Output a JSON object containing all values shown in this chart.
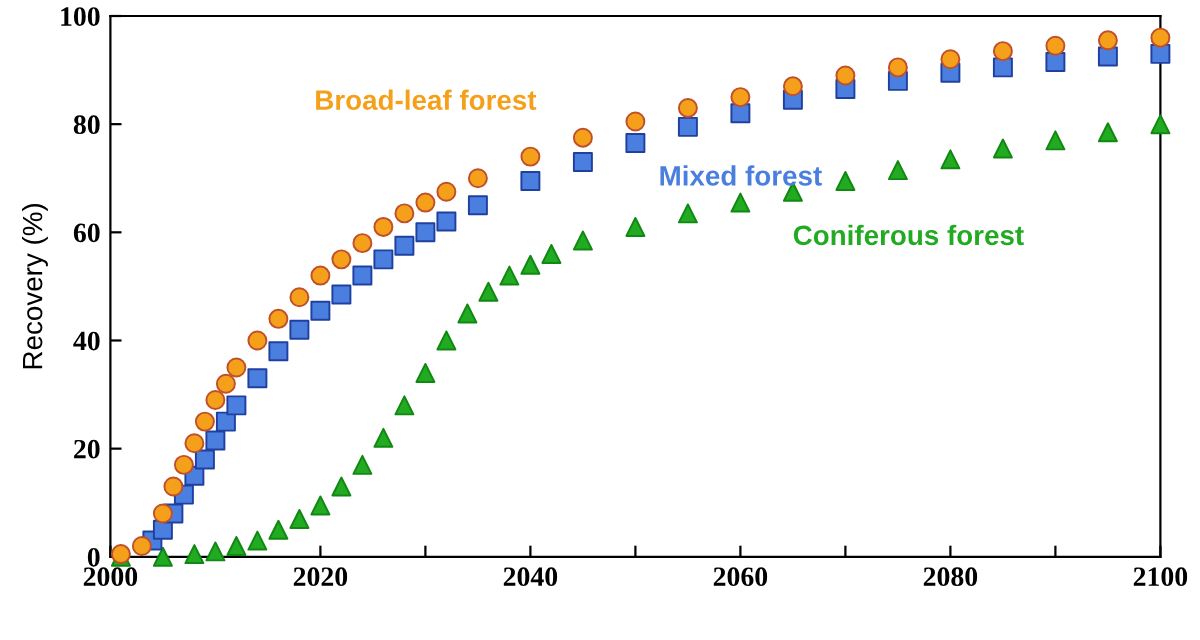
{
  "chart_data": {
    "type": "scatter",
    "ylabel": "Recovery (%)",
    "xlim": [
      2000,
      2100
    ],
    "ylim": [
      0,
      100
    ],
    "xticks": [
      2000,
      {
        "value": 2010,
        "label": null
      },
      2020,
      {
        "value": 2030,
        "label": null
      },
      2040,
      {
        "value": 2050,
        "label": null
      },
      2060,
      {
        "value": 2070,
        "label": null
      },
      2080,
      {
        "value": 2090,
        "label": null
      },
      2100
    ],
    "yticks": [
      0,
      20,
      40,
      60,
      80,
      100
    ],
    "grid": false,
    "legend": false,
    "series": [
      {
        "name": "Broad-leaf forest",
        "color": "#f5a01a",
        "marker": "circle",
        "x": [
          2001,
          2003,
          2005,
          2006,
          2007,
          2008,
          2009,
          2010,
          2011,
          2012,
          2014,
          2016,
          2018,
          2020,
          2022,
          2024,
          2026,
          2028,
          2030,
          2032,
          2035,
          2040,
          2045,
          2050,
          2055,
          2060,
          2065,
          2070,
          2075,
          2080,
          2085,
          2090,
          2095,
          2100
        ],
        "values": [
          0.5,
          2,
          8,
          13,
          17,
          21,
          25,
          29,
          32,
          35,
          40,
          44,
          48,
          52,
          55,
          58,
          61,
          63.5,
          65.5,
          67.5,
          70,
          74,
          77.5,
          80.5,
          83,
          85,
          87,
          89,
          90.5,
          92,
          93.5,
          94.5,
          95.5,
          96
        ]
      },
      {
        "name": "Mixed forest",
        "color": "#4a7fe0",
        "marker": "square",
        "x": [
          2004,
          2005,
          2006,
          2007,
          2008,
          2009,
          2010,
          2011,
          2012,
          2014,
          2016,
          2018,
          2020,
          2022,
          2024,
          2026,
          2028,
          2030,
          2032,
          2035,
          2040,
          2045,
          2050,
          2055,
          2060,
          2065,
          2070,
          2075,
          2080,
          2085,
          2090,
          2095,
          2100
        ],
        "values": [
          3,
          5,
          8,
          11.5,
          15,
          18,
          21.5,
          25,
          28,
          33,
          38,
          42,
          45.5,
          48.5,
          52,
          55,
          57.5,
          60,
          62,
          65,
          69.5,
          73,
          76.5,
          79.5,
          82,
          84.5,
          86.5,
          88,
          89.5,
          90.5,
          91.5,
          92.5,
          93
        ]
      },
      {
        "name": "Coniferous forest",
        "color": "#22aa22",
        "marker": "triangle",
        "x": [
          2001,
          2005,
          2008,
          2010,
          2012,
          2014,
          2016,
          2018,
          2020,
          2022,
          2024,
          2026,
          2028,
          2030,
          2032,
          2034,
          2036,
          2038,
          2040,
          2042,
          2045,
          2050,
          2055,
          2060,
          2065,
          2070,
          2075,
          2080,
          2085,
          2090,
          2095,
          2100
        ],
        "values": [
          0,
          0,
          0.5,
          1,
          2,
          3,
          5,
          7,
          9.5,
          13,
          17,
          22,
          28,
          34,
          40,
          45,
          49,
          52,
          54,
          56,
          58.5,
          61,
          63.5,
          65.5,
          67.5,
          69.5,
          71.5,
          73.5,
          75.5,
          77,
          78.5,
          80
        ]
      }
    ]
  }
}
